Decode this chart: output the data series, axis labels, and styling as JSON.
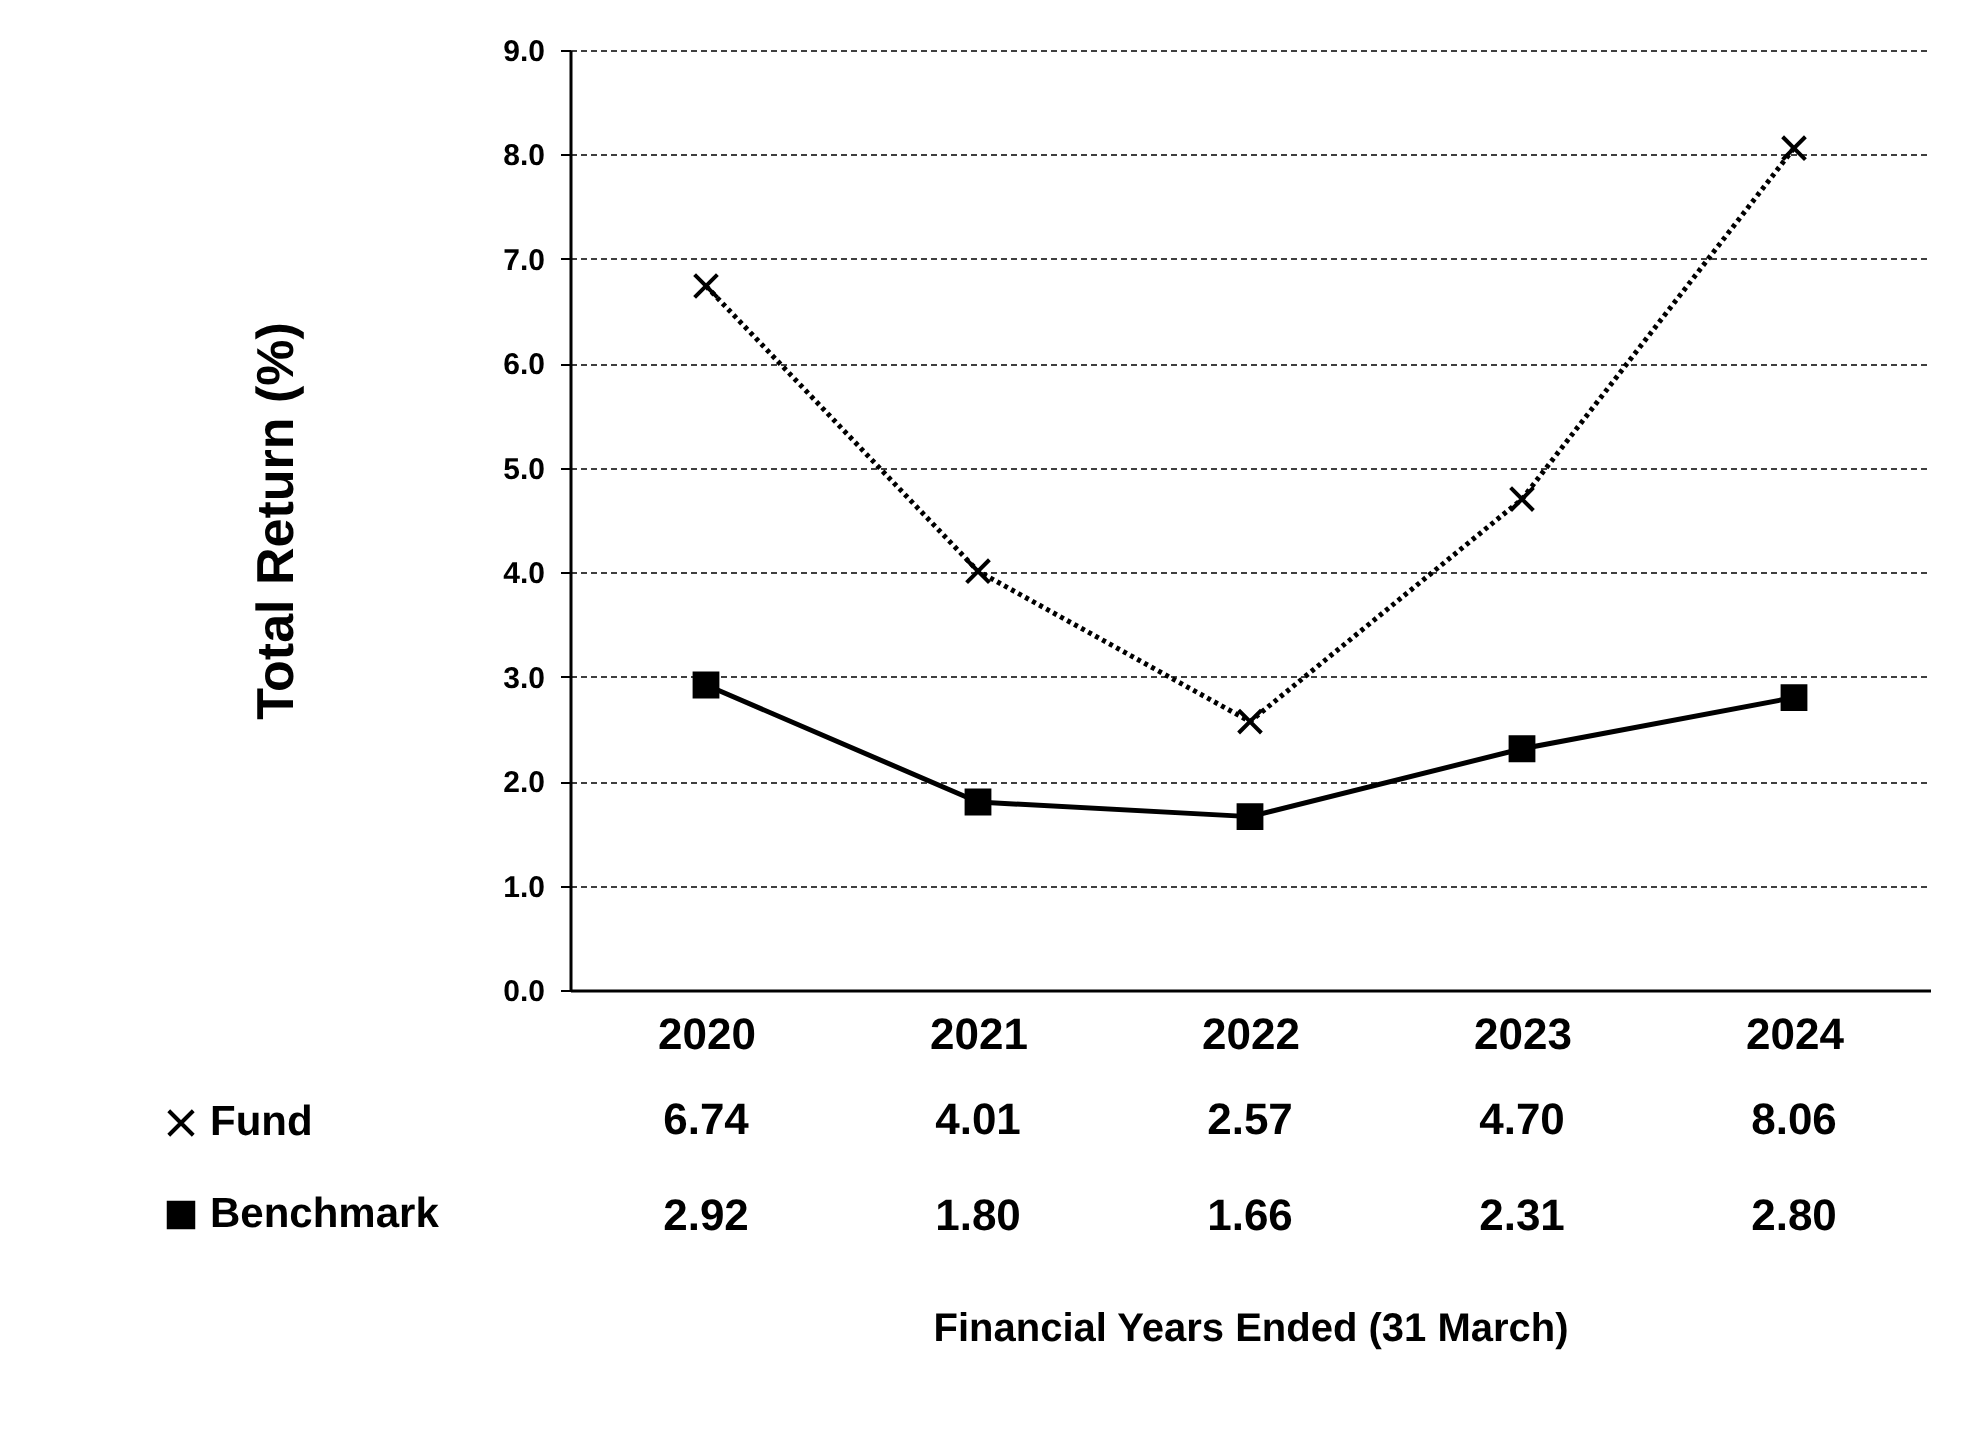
{
  "chart_data": {
    "type": "line",
    "annotations": [
      "Financial  Years Ended (31 March)"
    ],
    "ylabel": "Total Return (%)",
    "categories": [
      "2020",
      "2021",
      "2022",
      "2023",
      "2024"
    ],
    "series": [
      {
        "name": "Fund",
        "color": "#000000",
        "marker": "cross",
        "line_style": "dotted",
        "values": [
          6.74,
          4.01,
          2.57,
          4.7,
          8.06
        ],
        "value_labels": [
          "6.74",
          "4.01",
          "2.57",
          "4.70",
          "8.06"
        ]
      },
      {
        "name": "Benchmark",
        "color": "#000000",
        "marker": "square",
        "line_style": "solid",
        "values": [
          2.92,
          1.8,
          1.66,
          2.31,
          2.8
        ],
        "value_labels": [
          "2.92",
          "1.80",
          "1.66",
          "2.31",
          "2.80"
        ]
      }
    ],
    "ylim": [
      0,
      9
    ],
    "yticks": [
      {
        "value": 0,
        "label": "0.0"
      },
      {
        "value": 1,
        "label": "1.0"
      },
      {
        "value": 2,
        "label": "2.0"
      },
      {
        "value": 3,
        "label": "3.0"
      },
      {
        "value": 4,
        "label": "4.0"
      },
      {
        "value": 5,
        "label": "5.0"
      },
      {
        "value": 6,
        "label": "6.0"
      },
      {
        "value": 7,
        "label": "7.0"
      },
      {
        "value": 8,
        "label": "8.0"
      },
      {
        "value": 9,
        "label": "9.0"
      }
    ],
    "grid": "y",
    "legend": "bottom left"
  }
}
